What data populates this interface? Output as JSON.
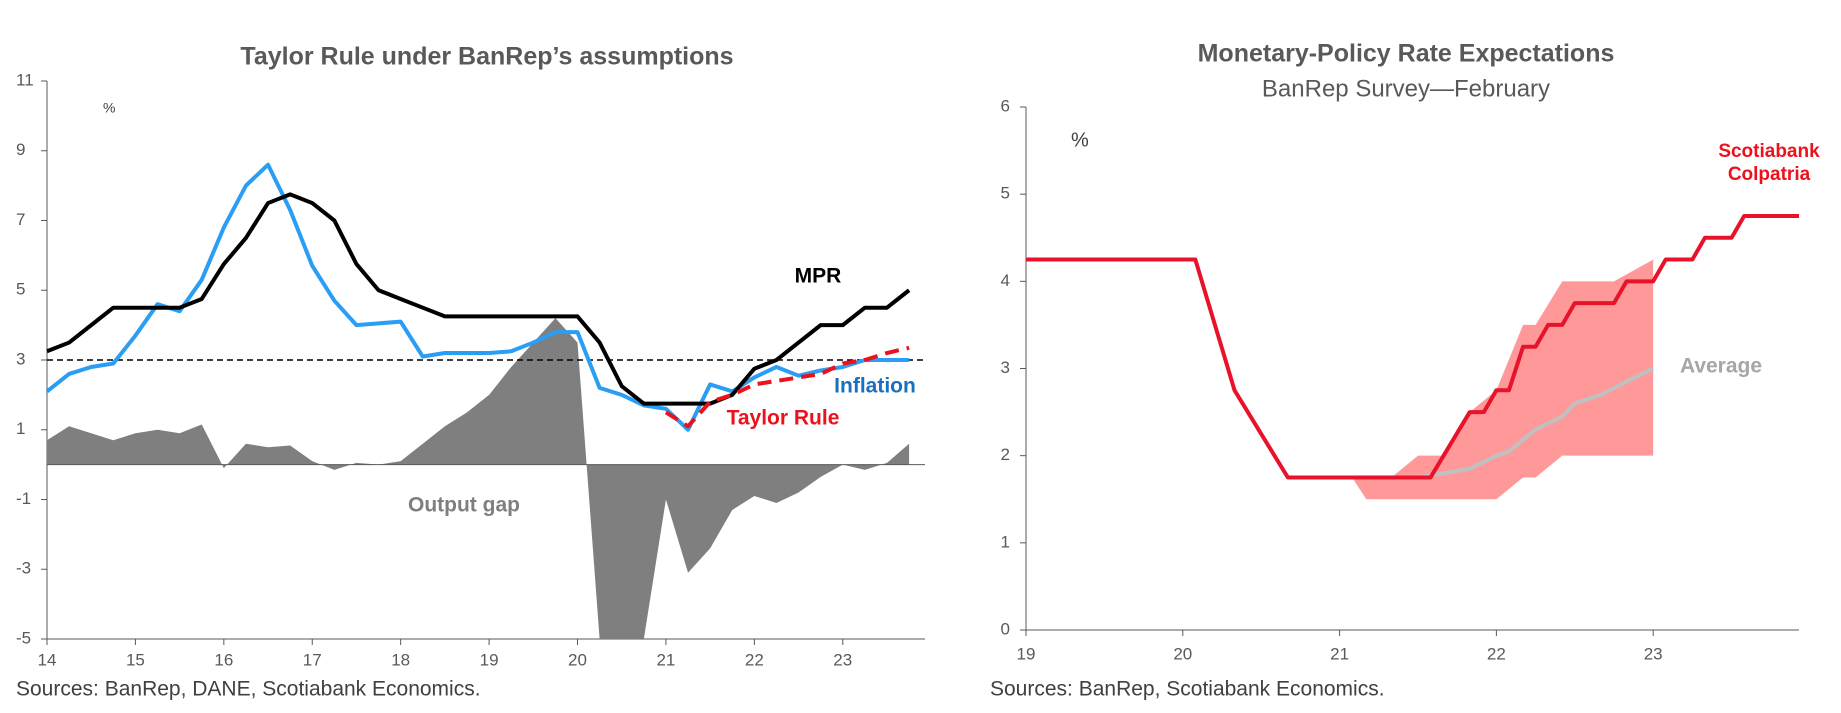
{
  "chart_data": [
    {
      "type": "line",
      "title": "Taylor Rule under BanRep’s assumptions",
      "unit_label": "%",
      "source": "Sources: BanRep, DANE, Scotiabank Economics.",
      "xlim": [
        14,
        23.93
      ],
      "xticks": [
        14,
        15,
        16,
        17,
        18,
        19,
        20,
        21,
        22,
        23
      ],
      "ylim": [
        -5,
        11
      ],
      "yticks": [
        -5,
        -3,
        -1,
        1,
        3,
        5,
        7,
        9,
        11
      ],
      "hline": 3,
      "x": [
        14,
        14.25,
        14.5,
        14.75,
        15,
        15.25,
        15.5,
        15.75,
        16,
        16.25,
        16.5,
        16.75,
        17,
        17.25,
        17.5,
        17.75,
        18,
        18.25,
        18.5,
        18.75,
        19,
        19.25,
        19.5,
        19.75,
        20,
        20.25,
        20.5,
        20.75,
        21,
        21.25,
        21.5,
        21.75,
        22,
        22.25,
        22.5,
        22.75,
        23,
        23.25,
        23.5,
        23.75
      ],
      "series": [
        {
          "name": "Output gap",
          "kind": "area",
          "color": "#7f7f7f",
          "label_color": "#7f7f7f",
          "values": [
            0.7,
            1.1,
            0.9,
            0.7,
            0.9,
            1.0,
            0.9,
            1.15,
            -0.1,
            0.6,
            0.5,
            0.55,
            0.1,
            -0.15,
            0.05,
            0.0,
            0.1,
            0.6,
            1.1,
            1.5,
            2.0,
            2.8,
            3.5,
            4.2,
            3.5,
            -5,
            -5,
            -5,
            -1.0,
            -3.1,
            -2.4,
            -1.3,
            -0.9,
            -1.1,
            -0.8,
            -0.35,
            0.0,
            -0.15,
            0.05,
            0.6
          ]
        },
        {
          "name": "Inflation",
          "kind": "line",
          "color": "#2a9df4",
          "label_color": "#1a6fbf",
          "values": [
            2.1,
            2.6,
            2.8,
            2.9,
            3.7,
            4.6,
            4.4,
            5.3,
            6.8,
            8.0,
            8.6,
            7.3,
            5.7,
            4.7,
            4.0,
            4.05,
            4.1,
            3.1,
            3.2,
            3.2,
            3.2,
            3.25,
            3.5,
            3.8,
            3.8,
            2.2,
            2.0,
            1.7,
            1.6,
            1.0,
            2.3,
            2.1,
            2.5,
            2.8,
            2.55,
            2.7,
            2.8,
            3.0,
            3.0,
            3.0
          ]
        },
        {
          "name": "MPR",
          "kind": "line",
          "color": "#000000",
          "label_color": "#000000",
          "values": [
            3.25,
            3.5,
            4.0,
            4.5,
            4.5,
            4.5,
            4.5,
            4.75,
            5.75,
            6.5,
            7.5,
            7.75,
            7.5,
            7.0,
            5.75,
            5.0,
            4.75,
            4.5,
            4.25,
            4.25,
            4.25,
            4.25,
            4.25,
            4.25,
            4.25,
            3.5,
            2.25,
            1.75,
            1.75,
            1.75,
            1.75,
            2.0,
            2.75,
            3.0,
            3.5,
            4.0,
            4.0,
            4.5,
            4.5,
            5.0
          ]
        },
        {
          "name": "Taylor Rule",
          "kind": "dashed",
          "color": "#ec111a",
          "label_color": "#ec111a",
          "values": [
            null,
            null,
            null,
            null,
            null,
            null,
            null,
            null,
            null,
            null,
            null,
            null,
            null,
            null,
            null,
            null,
            null,
            null,
            null,
            null,
            null,
            null,
            null,
            null,
            null,
            null,
            null,
            null,
            1.5,
            1.1,
            1.8,
            2.0,
            2.3,
            2.4,
            2.5,
            2.6,
            2.9,
            3.0,
            3.2,
            3.35
          ]
        }
      ]
    },
    {
      "type": "line",
      "title": "Monetary-Policy Rate Expectations",
      "subtitle": "BanRep Survey—February",
      "unit_label": "%",
      "source": "Sources: BanRep, Scotiabank Economics.",
      "xlim": [
        19,
        23.93
      ],
      "xticks": [
        19,
        20,
        21,
        22,
        23
      ],
      "ylim": [
        0,
        6
      ],
      "yticks": [
        0,
        1,
        2,
        3,
        4,
        5,
        6
      ],
      "band": {
        "color": "#ff9999",
        "x": [
          21.08,
          21.17,
          21.33,
          21.5,
          21.67,
          21.83,
          22.0,
          22.17,
          22.25,
          22.42,
          22.5,
          22.75,
          23.0
        ],
        "low": [
          1.75,
          1.5,
          1.5,
          1.5,
          1.5,
          1.5,
          1.5,
          1.75,
          1.75,
          2.0,
          2.0,
          2.0,
          2.0
        ],
        "high": [
          1.75,
          1.75,
          1.75,
          2.0,
          2.0,
          2.5,
          2.75,
          3.5,
          3.5,
          4.0,
          4.0,
          4.0,
          4.25
        ]
      },
      "series": [
        {
          "name": "Average",
          "kind": "line",
          "color": "#c0c0c0",
          "label_color": "#a6a6a6",
          "x": [
            21.08,
            21.5,
            21.67,
            21.83,
            22.0,
            22.08,
            22.25,
            22.42,
            22.5,
            22.67,
            22.83,
            23.0
          ],
          "values": [
            1.75,
            1.75,
            1.8,
            1.85,
            2.0,
            2.05,
            2.3,
            2.45,
            2.6,
            2.7,
            2.85,
            3.0
          ]
        },
        {
          "name": "Scotiabank Colpatria",
          "kind": "line",
          "color": "#e8132b",
          "label_color": "#ec111a",
          "x": [
            19,
            20.08,
            20.33,
            20.67,
            21.58,
            21.83,
            21.92,
            22.0,
            22.08,
            22.17,
            22.25,
            22.33,
            22.42,
            22.5,
            22.75,
            22.83,
            23.0,
            23.08,
            23.25,
            23.33,
            23.5,
            23.58,
            23.93
          ],
          "values": [
            4.25,
            4.25,
            2.75,
            1.75,
            1.75,
            2.5,
            2.5,
            2.75,
            2.75,
            3.25,
            3.25,
            3.5,
            3.5,
            3.75,
            3.75,
            4.0,
            4.0,
            4.25,
            4.25,
            4.5,
            4.5,
            4.75,
            4.75
          ]
        }
      ]
    }
  ]
}
